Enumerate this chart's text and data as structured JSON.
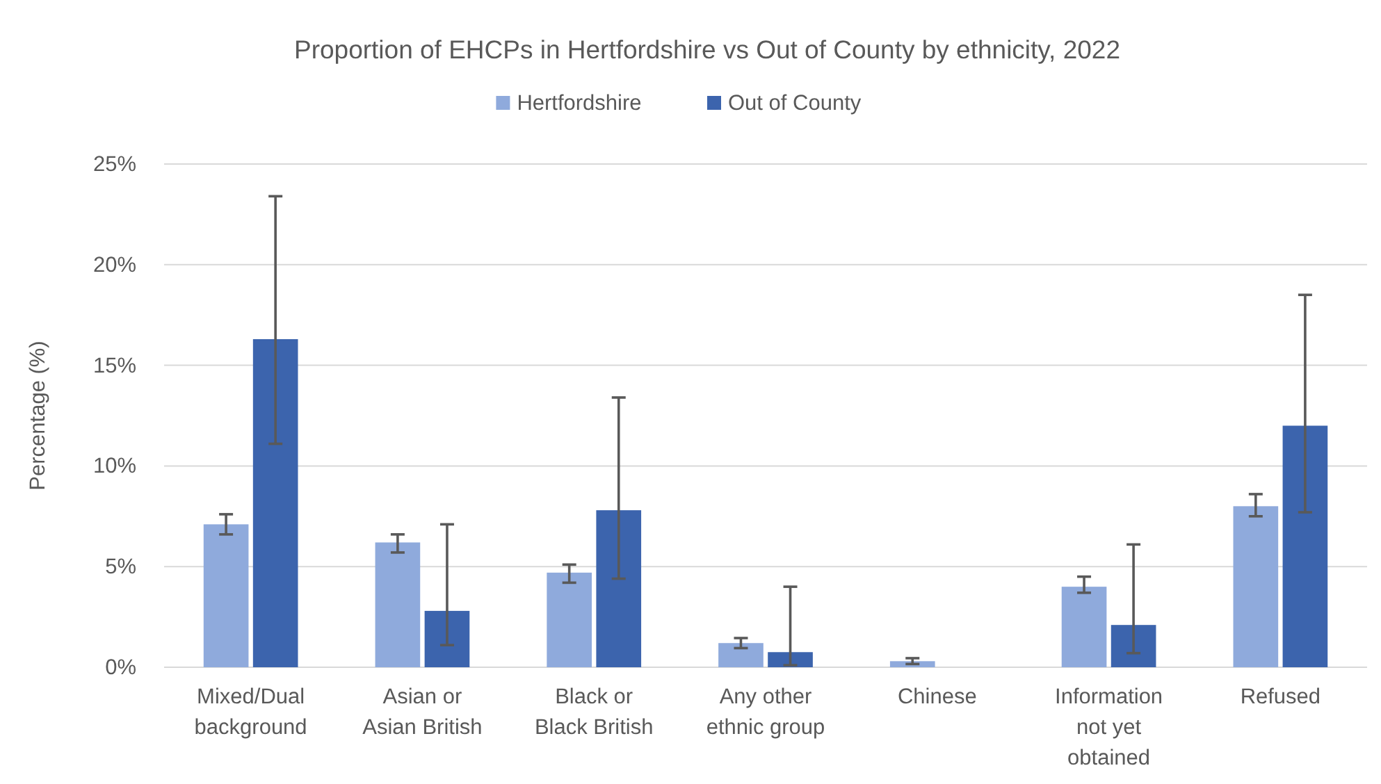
{
  "chart_data": {
    "type": "bar",
    "title": "Proportion of EHCPs in Hertfordshire vs Out of County by ethnicity, 2022",
    "ylabel": "Percentage (%)",
    "categories": [
      "Mixed/Dual background",
      "Asian or Asian British",
      "Black or Black British",
      "Any other ethnic group",
      "Chinese",
      "Information not yet obtained",
      "Refused"
    ],
    "series": [
      {
        "name": "Hertfordshire",
        "color": "#8faadc",
        "values": [
          7.1,
          6.2,
          4.7,
          1.2,
          0.3,
          4.0,
          8.0
        ],
        "errors": [
          [
            6.6,
            7.6
          ],
          [
            5.7,
            6.6
          ],
          [
            4.2,
            5.1
          ],
          [
            0.95,
            1.45
          ],
          [
            0.16,
            0.45
          ],
          [
            3.7,
            4.5
          ],
          [
            7.5,
            8.6
          ]
        ]
      },
      {
        "name": "Out of County",
        "color": "#3c64ad",
        "values": [
          16.3,
          2.8,
          7.8,
          0.75,
          null,
          2.1,
          12.0
        ],
        "errors": [
          [
            11.1,
            23.4
          ],
          [
            1.1,
            7.1
          ],
          [
            4.4,
            13.4
          ],
          [
            0.1,
            4.0
          ],
          null,
          [
            0.7,
            6.1
          ],
          [
            7.7,
            18.5
          ]
        ]
      }
    ],
    "ylim": [
      0,
      25
    ],
    "yticks": [
      {
        "value": 0,
        "label": "0%"
      },
      {
        "value": 5,
        "label": "5%"
      },
      {
        "value": 10,
        "label": "10%"
      },
      {
        "value": 15,
        "label": "15%"
      },
      {
        "value": 20,
        "label": "20%"
      },
      {
        "value": 25,
        "label": "25%"
      }
    ],
    "grid": "y",
    "legend": "top"
  }
}
